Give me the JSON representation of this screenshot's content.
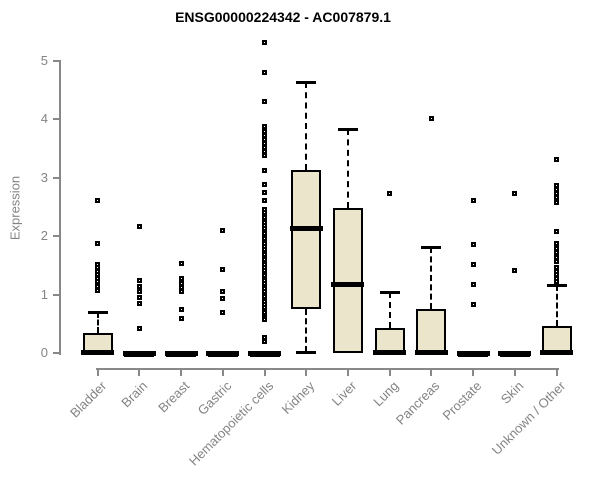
{
  "title": "ENSG00000224342 - AC007879.1",
  "colors": {
    "box_fill": "#EBE6CB",
    "box_border": "#000000",
    "axis": "#888888",
    "axis_text": "#848484",
    "title_text": "#000000"
  },
  "chart_data": {
    "type": "boxplot",
    "title": "ENSG00000224342 - AC007879.1",
    "xlabel": "",
    "ylabel": "Expression",
    "ylim": [
      0,
      5.4
    ],
    "yticks": [
      0,
      1,
      2,
      3,
      4,
      5
    ],
    "grid": false,
    "legend": "none",
    "categories": [
      "Bladder",
      "Brain",
      "Breast",
      "Gastric",
      "Hematopoietic cells",
      "Kidney",
      "Liver",
      "Lung",
      "Pancreas",
      "Prostate",
      "Skin",
      "Unknown / Other"
    ],
    "boxes": [
      {
        "category": "Bladder",
        "q1": 0,
        "median": 0.02,
        "q3": 0.35,
        "whisker_low": 0,
        "whisker_high": 0.7,
        "outliers": [
          2.61,
          1.88,
          1.51,
          1.46,
          1.4,
          1.34,
          1.28,
          1.22,
          1.15,
          1.08
        ]
      },
      {
        "category": "Brain",
        "q1": 0,
        "median": 0,
        "q3": 0,
        "whisker_low": 0,
        "whisker_high": 0,
        "outliers": [
          2.16,
          1.25,
          1.15,
          1.05,
          0.95,
          0.85,
          0.42
        ]
      },
      {
        "category": "Breast",
        "q1": 0,
        "median": 0,
        "q3": 0,
        "whisker_low": 0,
        "whisker_high": 0,
        "outliers": [
          1.54,
          1.28,
          1.2,
          1.13,
          1.06,
          0.75,
          0.6
        ]
      },
      {
        "category": "Gastric",
        "q1": 0,
        "median": 0,
        "q3": 0,
        "whisker_low": 0,
        "whisker_high": 0,
        "outliers": [
          2.1,
          1.44,
          1.05,
          0.93,
          0.69
        ]
      },
      {
        "category": "Hematopoietic cells",
        "q1": 0,
        "median": 0,
        "q3": 0,
        "whisker_low": 0,
        "whisker_high": 0,
        "outliers": [
          5.31,
          4.8,
          4.3,
          3.87,
          3.8,
          3.73,
          3.66,
          3.59,
          3.52,
          3.45,
          3.38,
          3.13,
          2.88,
          2.75,
          2.62,
          2.45,
          2.41,
          2.36,
          2.32,
          2.27,
          2.23,
          2.18,
          2.14,
          2.09,
          2.05,
          2.0,
          1.96,
          1.91,
          1.87,
          1.82,
          1.78,
          1.73,
          1.69,
          1.64,
          1.6,
          1.55,
          1.51,
          1.46,
          1.42,
          1.37,
          1.33,
          1.28,
          1.24,
          1.19,
          1.15,
          1.1,
          1.06,
          1.01,
          0.97,
          0.92,
          0.88,
          0.83,
          0.79,
          0.74,
          0.7,
          0.65,
          0.61,
          0.57,
          0.27,
          0.2
        ]
      },
      {
        "category": "Kidney",
        "q1": 0.75,
        "median": 2.14,
        "q3": 3.13,
        "whisker_low": 0.02,
        "whisker_high": 4.64,
        "outliers": []
      },
      {
        "category": "Liver",
        "q1": 0,
        "median": 1.18,
        "q3": 2.48,
        "whisker_low": 0,
        "whisker_high": 3.83,
        "outliers": []
      },
      {
        "category": "Lung",
        "q1": 0,
        "median": 0.02,
        "q3": 0.43,
        "whisker_low": 0,
        "whisker_high": 1.04,
        "outliers": [
          2.74
        ]
      },
      {
        "category": "Pancreas",
        "q1": 0,
        "median": 0.02,
        "q3": 0.75,
        "whisker_low": 0,
        "whisker_high": 1.82,
        "outliers": [
          4.02
        ]
      },
      {
        "category": "Prostate",
        "q1": 0,
        "median": 0,
        "q3": 0,
        "whisker_low": 0,
        "whisker_high": 0,
        "outliers": [
          2.61,
          1.86,
          1.51,
          1.18,
          0.83
        ]
      },
      {
        "category": "Skin",
        "q1": 0,
        "median": 0,
        "q3": 0,
        "whisker_low": 0,
        "whisker_high": 0,
        "outliers": [
          2.73,
          1.41
        ]
      },
      {
        "category": "Unknown / Other",
        "q1": 0,
        "median": 0.02,
        "q3": 0.47,
        "whisker_low": 0,
        "whisker_high": 1.17,
        "outliers": [
          3.32,
          2.87,
          2.8,
          2.73,
          2.66,
          2.57,
          2.08,
          1.88,
          1.8,
          1.72,
          1.64,
          1.57,
          1.46,
          1.4,
          1.34,
          1.28,
          1.22
        ]
      }
    ]
  }
}
